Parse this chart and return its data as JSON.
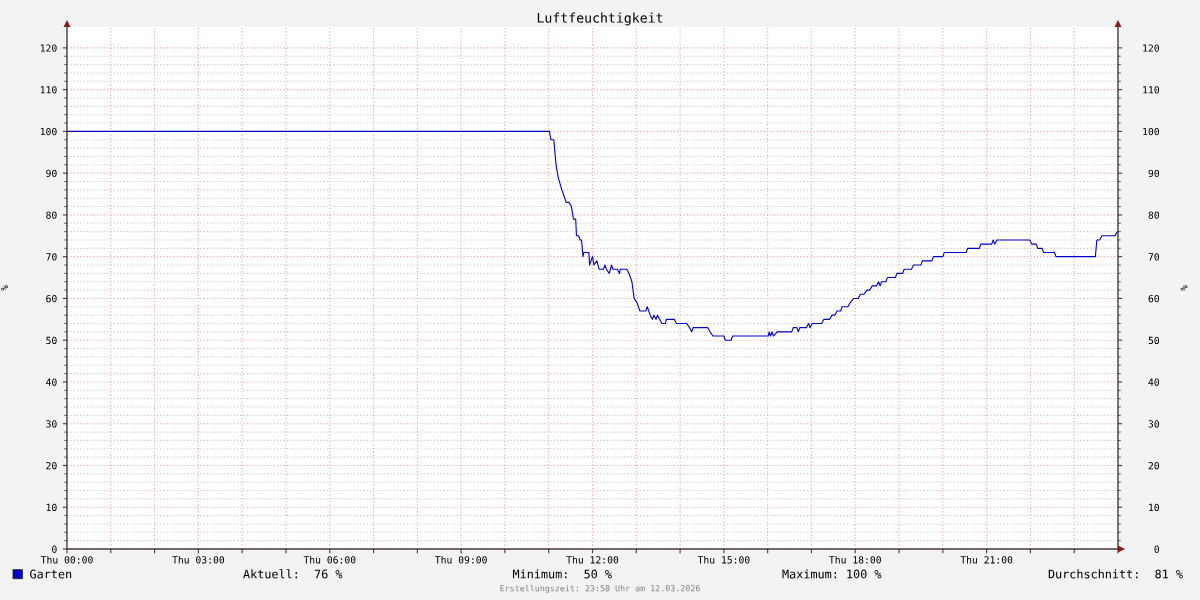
{
  "chart_data": {
    "type": "line",
    "title": "Luftfeuchtigkeit",
    "ylabel": "%",
    "y2label": "%",
    "xlim": [
      "2026-03-12T00:00",
      "2026-03-13T00:00"
    ],
    "xticks": [
      {
        "value": "2026-03-12T00:00",
        "label": "Thu 00:00"
      },
      {
        "value": "2026-03-12T01:00",
        "label": null
      },
      {
        "value": "2026-03-12T02:00",
        "label": null
      },
      {
        "value": "2026-03-12T03:00",
        "label": "Thu 03:00"
      },
      {
        "value": "2026-03-12T04:00",
        "label": null
      },
      {
        "value": "2026-03-12T05:00",
        "label": null
      },
      {
        "value": "2026-03-12T06:00",
        "label": "Thu 06:00"
      },
      {
        "value": "2026-03-12T07:00",
        "label": null
      },
      {
        "value": "2026-03-12T08:00",
        "label": null
      },
      {
        "value": "2026-03-12T09:00",
        "label": "Thu 09:00"
      },
      {
        "value": "2026-03-12T10:00",
        "label": null
      },
      {
        "value": "2026-03-12T11:00",
        "label": null
      },
      {
        "value": "2026-03-12T12:00",
        "label": "Thu 12:00"
      },
      {
        "value": "2026-03-12T13:00",
        "label": null
      },
      {
        "value": "2026-03-12T14:00",
        "label": null
      },
      {
        "value": "2026-03-12T15:00",
        "label": "Thu 15:00"
      },
      {
        "value": "2026-03-12T16:00",
        "label": null
      },
      {
        "value": "2026-03-12T17:00",
        "label": null
      },
      {
        "value": "2026-03-12T18:00",
        "label": "Thu 18:00"
      },
      {
        "value": "2026-03-12T19:00",
        "label": null
      },
      {
        "value": "2026-03-12T20:00",
        "label": null
      },
      {
        "value": "2026-03-12T21:00",
        "label": "Thu 21:00"
      },
      {
        "value": "2026-03-12T22:00",
        "label": null
      },
      {
        "value": "2026-03-12T23:00",
        "label": null
      },
      {
        "value": "2026-03-13T00:00",
        "label": null
      }
    ],
    "ylim": [
      0,
      125
    ],
    "yticks": [
      0,
      10,
      20,
      30,
      40,
      50,
      60,
      70,
      80,
      90,
      100,
      110,
      120
    ],
    "y2lim": [
      0,
      125
    ],
    "y2ticks": [
      0,
      10,
      20,
      30,
      40,
      50,
      60,
      70,
      80,
      90,
      100,
      110,
      120
    ],
    "grid": true,
    "legend": "bottom left",
    "series": [
      {
        "name": "Garten",
        "color": "#0000cc",
        "x": [
          "2026-03-12T00:00",
          "2026-03-12T11:01",
          "2026-03-12T11:03",
          "2026-03-12T11:07",
          "2026-03-12T11:10",
          "2026-03-12T11:13",
          "2026-03-12T11:18",
          "2026-03-12T11:22",
          "2026-03-12T11:24",
          "2026-03-12T11:28",
          "2026-03-12T11:31",
          "2026-03-12T11:34",
          "2026-03-12T11:37",
          "2026-03-12T11:38",
          "2026-03-12T11:41",
          "2026-03-12T11:43",
          "2026-03-12T11:45",
          "2026-03-12T11:47",
          "2026-03-12T11:48",
          "2026-03-12T11:55",
          "2026-03-12T11:56",
          "2026-03-12T12:00",
          "2026-03-12T12:02",
          "2026-03-12T12:06",
          "2026-03-12T12:09",
          "2026-03-12T12:15",
          "2026-03-12T12:17",
          "2026-03-12T12:19",
          "2026-03-12T12:23",
          "2026-03-12T12:26",
          "2026-03-12T12:28",
          "2026-03-12T12:34",
          "2026-03-12T12:37",
          "2026-03-12T12:38",
          "2026-03-12T12:47",
          "2026-03-12T12:50",
          "2026-03-12T12:54",
          "2026-03-12T12:57",
          "2026-03-12T13:01",
          "2026-03-12T13:05",
          "2026-03-12T13:13",
          "2026-03-12T13:15",
          "2026-03-12T13:19",
          "2026-03-12T13:22",
          "2026-03-12T13:24",
          "2026-03-12T13:27",
          "2026-03-12T13:29",
          "2026-03-12T13:32",
          "2026-03-12T13:35",
          "2026-03-12T13:40",
          "2026-03-12T13:41",
          "2026-03-12T13:52",
          "2026-03-12T13:55",
          "2026-03-12T14:09",
          "2026-03-12T14:13",
          "2026-03-12T14:16",
          "2026-03-12T14:18",
          "2026-03-12T14:38",
          "2026-03-12T14:41",
          "2026-03-12T14:45",
          "2026-03-12T15:00",
          "2026-03-12T15:02",
          "2026-03-12T15:10",
          "2026-03-12T15:12",
          "2026-03-12T16:01",
          "2026-03-12T16:02",
          "2026-03-12T16:04",
          "2026-03-12T16:06",
          "2026-03-12T16:08",
          "2026-03-12T16:13",
          "2026-03-12T16:33",
          "2026-03-12T16:35",
          "2026-03-12T16:40",
          "2026-03-12T16:42",
          "2026-03-12T16:44",
          "2026-03-12T16:53",
          "2026-03-12T16:56",
          "2026-03-12T16:58",
          "2026-03-12T17:01",
          "2026-03-12T17:14",
          "2026-03-12T17:17",
          "2026-03-12T17:25",
          "2026-03-12T17:28",
          "2026-03-12T17:32",
          "2026-03-12T17:35",
          "2026-03-12T17:40",
          "2026-03-12T17:42",
          "2026-03-12T17:50",
          "2026-03-12T17:53",
          "2026-03-12T17:58",
          "2026-03-12T18:04",
          "2026-03-12T18:07",
          "2026-03-12T18:12",
          "2026-03-12T18:16",
          "2026-03-12T18:20",
          "2026-03-12T18:23",
          "2026-03-12T18:29",
          "2026-03-12T18:32",
          "2026-03-12T18:34",
          "2026-03-12T18:36",
          "2026-03-12T18:42",
          "2026-03-12T18:44",
          "2026-03-12T18:55",
          "2026-03-12T18:57",
          "2026-03-12T19:05",
          "2026-03-12T19:07",
          "2026-03-12T19:17",
          "2026-03-12T19:20",
          "2026-03-12T19:30",
          "2026-03-12T19:32",
          "2026-03-12T19:45",
          "2026-03-12T19:47",
          "2026-03-12T20:00",
          "2026-03-12T20:02",
          "2026-03-12T20:32",
          "2026-03-12T20:34",
          "2026-03-12T20:50",
          "2026-03-12T20:52",
          "2026-03-12T21:07",
          "2026-03-12T21:09",
          "2026-03-12T21:11",
          "2026-03-12T21:14",
          "2026-03-12T21:59",
          "2026-03-12T22:02",
          "2026-03-12T22:08",
          "2026-03-12T22:10",
          "2026-03-12T22:16",
          "2026-03-12T22:18",
          "2026-03-12T22:33",
          "2026-03-12T22:35",
          "2026-03-12T23:29",
          "2026-03-12T23:31",
          "2026-03-12T23:35",
          "2026-03-12T23:38",
          "2026-03-12T23:56",
          "2026-03-12T23:59"
        ],
        "values": [
          100,
          100,
          98,
          98,
          92,
          89,
          86,
          84,
          83,
          83,
          82,
          79,
          79,
          75,
          75,
          74,
          74,
          70,
          71,
          71,
          68,
          70,
          68,
          69,
          67,
          67,
          68,
          67,
          66,
          68,
          67,
          67,
          66,
          67,
          67,
          66,
          64,
          60,
          59,
          57,
          57,
          58,
          56,
          55,
          56,
          55,
          56,
          55,
          54,
          54,
          55,
          55,
          54,
          54,
          53,
          52,
          53,
          53,
          52,
          51,
          51,
          50,
          50,
          51,
          51,
          52,
          51,
          52,
          51,
          52,
          52,
          53,
          53,
          52,
          53,
          53,
          54,
          53,
          54,
          54,
          55,
          55,
          56,
          56,
          57,
          57,
          58,
          58,
          59,
          60,
          60,
          61,
          61,
          62,
          62,
          63,
          63,
          64,
          63,
          64,
          64,
          65,
          65,
          66,
          66,
          67,
          67,
          68,
          68,
          69,
          69,
          70,
          70,
          71,
          71,
          72,
          72,
          73,
          73,
          74,
          73,
          74,
          74,
          73,
          73,
          72,
          72,
          71,
          71,
          70,
          70,
          74,
          74,
          75,
          75,
          76
        ]
      }
    ],
    "annotations": [
      "Aktuell:  76 %",
      "Minimum:  50 %",
      "Maximum: 100 %",
      "Durchschnitt:  81 %",
      "Erstellungszeit: 23:58 Uhr am 12.03.2026"
    ]
  }
}
